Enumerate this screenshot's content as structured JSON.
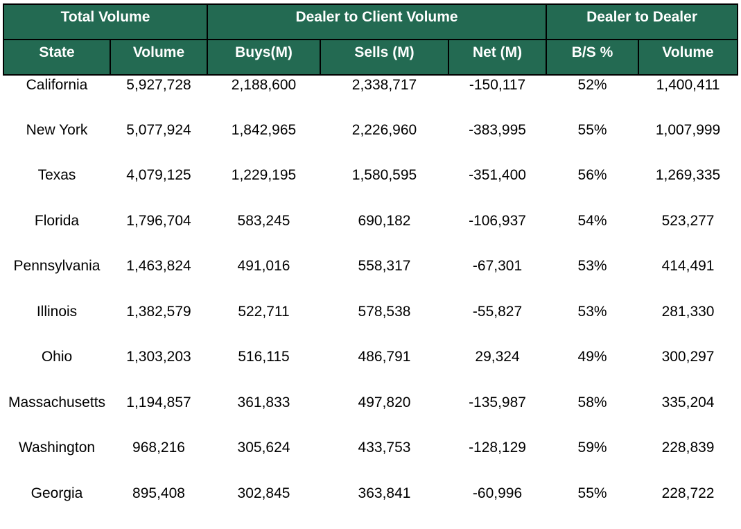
{
  "colors": {
    "header_bg": "#236a52",
    "header_text": "#ffffff",
    "border": "#000000"
  },
  "group_headers": [
    "Total Volume",
    "Dealer to Client Volume",
    "Dealer to Dealer"
  ],
  "column_headers": [
    "State",
    "Volume",
    "Buys(M)",
    "Sells (M)",
    "Net (M)",
    "B/S %",
    "Volume"
  ],
  "rows": [
    [
      "California",
      "5,927,728",
      "2,188,600",
      "2,338,717",
      "-150,117",
      "52%",
      "1,400,411"
    ],
    [
      "New York",
      "5,077,924",
      "1,842,965",
      "2,226,960",
      "-383,995",
      "55%",
      "1,007,999"
    ],
    [
      "Texas",
      "4,079,125",
      "1,229,195",
      "1,580,595",
      "-351,400",
      "56%",
      "1,269,335"
    ],
    [
      "Florida",
      "1,796,704",
      "583,245",
      "690,182",
      "-106,937",
      "54%",
      "523,277"
    ],
    [
      "Pennsylvania",
      "1,463,824",
      "491,016",
      "558,317",
      "-67,301",
      "53%",
      "414,491"
    ],
    [
      "Illinois",
      "1,382,579",
      "522,711",
      "578,538",
      "-55,827",
      "53%",
      "281,330"
    ],
    [
      "Ohio",
      "1,303,203",
      "516,115",
      "486,791",
      "29,324",
      "49%",
      "300,297"
    ],
    [
      "Massachusetts",
      "1,194,857",
      "361,833",
      "497,820",
      "-135,987",
      "58%",
      "335,204"
    ],
    [
      "Washington",
      "968,216",
      "305,624",
      "433,753",
      "-128,129",
      "59%",
      "228,839"
    ],
    [
      "Georgia",
      "895,408",
      "302,845",
      "363,841",
      "-60,996",
      "55%",
      "228,722"
    ]
  ]
}
